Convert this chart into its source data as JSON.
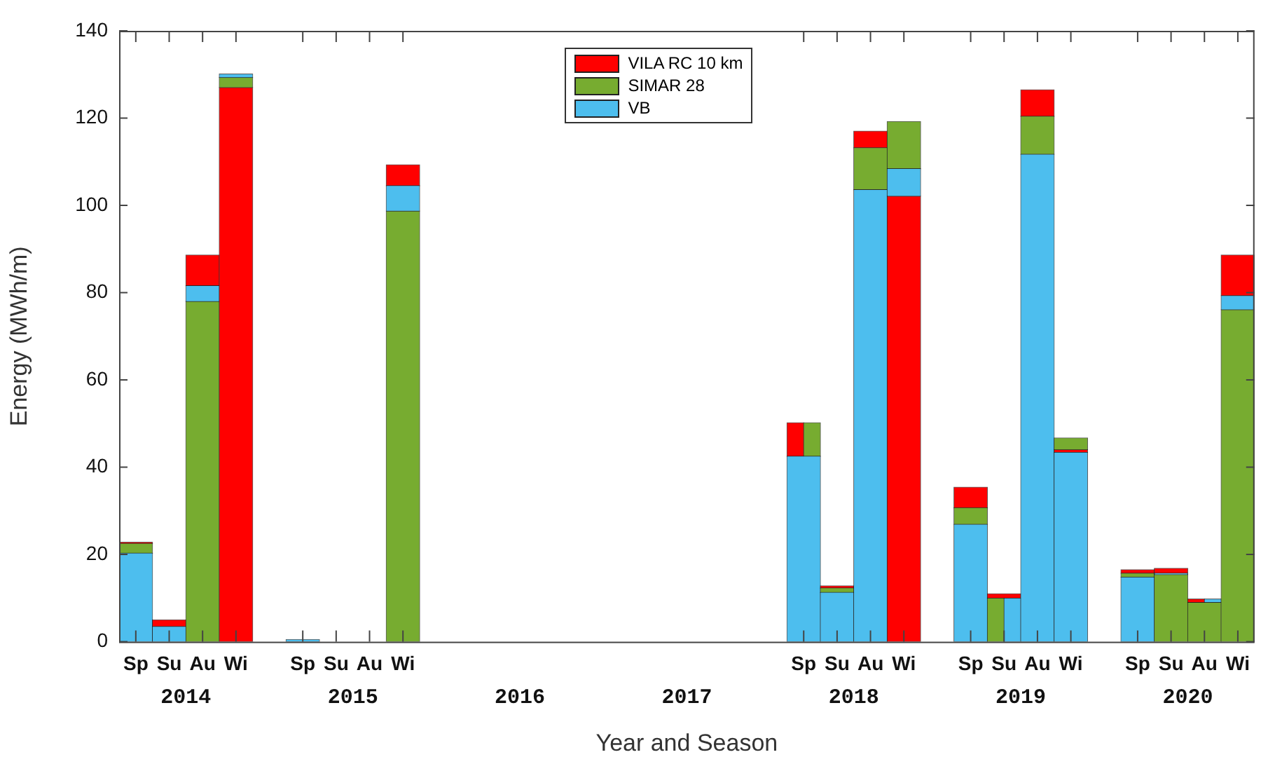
{
  "chart_data": {
    "type": "bar",
    "xlabel": "Year and Season",
    "ylabel": "Energy (MWh/m)",
    "categories": [
      "Sp",
      "Su",
      "Au",
      "Wi",
      null,
      "Sp",
      "Su",
      "Au",
      "Wi",
      null,
      null,
      null,
      null,
      null,
      null,
      null,
      null,
      null,
      null,
      null,
      "Sp",
      "Su",
      "Au",
      "Wi",
      null,
      "Sp",
      "Su",
      "Au",
      "Wi",
      null,
      "Sp",
      "Su",
      "Au",
      "Wi"
    ],
    "series": [
      {
        "name": "VILA RC 10 km",
        "color": "#ff0000",
        "values": [
          0.3,
          1.5,
          7.0,
          127.0,
          null,
          null,
          null,
          null,
          4.8,
          null,
          null,
          null,
          null,
          null,
          null,
          null,
          null,
          null,
          null,
          null,
          7.7,
          0.5,
          3.8,
          102.1,
          null,
          4.7,
          1.0,
          6.1,
          0.6,
          null,
          0.8,
          1.1,
          0.8,
          9.3
        ],
        "base": [
          22.5,
          3.5,
          81.6,
          0,
          null,
          null,
          null,
          null,
          104.5,
          null,
          null,
          null,
          null,
          null,
          null,
          null,
          null,
          null,
          null,
          null,
          42.5,
          12.3,
          113.2,
          0,
          null,
          30.7,
          10.0,
          120.4,
          43.4,
          null,
          15.7,
          15.7,
          9.0,
          79.3
        ]
      },
      {
        "name": "SIMAR 28",
        "color": "#77ac30",
        "values": [
          2.2,
          null,
          78.0,
          2.3,
          null,
          null,
          null,
          null,
          98.7,
          null,
          null,
          null,
          null,
          null,
          null,
          null,
          null,
          null,
          null,
          null,
          7.7,
          1.0,
          9.6,
          10.8,
          null,
          3.8,
          10.0,
          8.7,
          2.7,
          null,
          0.9,
          15.4,
          9.0,
          76.1
        ],
        "base": [
          20.3,
          null,
          0,
          127.0,
          null,
          null,
          null,
          null,
          0,
          null,
          null,
          null,
          null,
          null,
          null,
          null,
          null,
          null,
          null,
          null,
          42.5,
          11.3,
          103.6,
          108.4,
          null,
          26.9,
          0,
          111.7,
          44.0,
          null,
          14.8,
          0,
          0,
          0
        ]
      },
      {
        "name": "VB",
        "color": "#4dbeee",
        "values": [
          20.3,
          3.5,
          3.6,
          0.8,
          null,
          0.5,
          null,
          null,
          5.8,
          null,
          null,
          null,
          null,
          null,
          null,
          null,
          null,
          null,
          null,
          null,
          42.5,
          11.3,
          103.6,
          6.3,
          null,
          26.9,
          10.0,
          111.7,
          43.4,
          null,
          14.8,
          0.3,
          0.8,
          3.2
        ],
        "base": [
          0,
          0,
          78.0,
          129.3,
          null,
          0,
          null,
          null,
          98.7,
          null,
          null,
          null,
          null,
          null,
          null,
          null,
          null,
          null,
          null,
          null,
          0,
          0,
          0,
          102.1,
          null,
          0,
          0,
          0,
          0,
          null,
          0,
          15.4,
          9.0,
          76.1
        ]
      }
    ],
    "ylim": [
      0,
      140
    ],
    "yticks": [
      0,
      20,
      40,
      60,
      80,
      100,
      120,
      140
    ],
    "grid": false,
    "legend": "top",
    "annotations": [
      "2014",
      "2015",
      "2016",
      "2017",
      "2018",
      "2019",
      "2020"
    ]
  }
}
